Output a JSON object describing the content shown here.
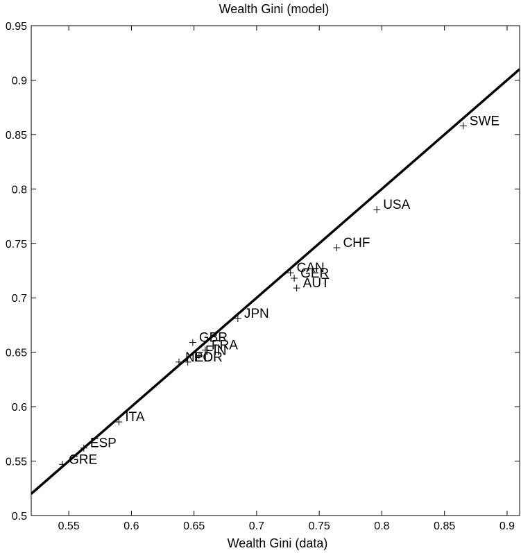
{
  "chart_data": {
    "type": "scatter",
    "title": "Wealth Gini (model)",
    "xlabel": "Wealth Gini (data)",
    "ylabel": "",
    "xlim": [
      0.52,
      0.91
    ],
    "ylim": [
      0.5,
      0.95
    ],
    "xticks": [
      "0.55",
      "0.6",
      "0.65",
      "0.7",
      "0.75",
      "0.8",
      "0.85",
      "0.9"
    ],
    "yticks": [
      "0.5",
      "0.55",
      "0.6",
      "0.65",
      "0.7",
      "0.75",
      "0.8",
      "0.85",
      "0.9",
      "0.95"
    ],
    "grid": false,
    "marker": "plus",
    "points": [
      {
        "label": "SWE",
        "x": 0.865,
        "y": 0.858
      },
      {
        "label": "USA",
        "x": 0.796,
        "y": 0.781
      },
      {
        "label": "CHF",
        "x": 0.764,
        "y": 0.746
      },
      {
        "label": "CAN",
        "x": 0.727,
        "y": 0.723
      },
      {
        "label": "GER",
        "x": 0.73,
        "y": 0.718
      },
      {
        "label": "AUT",
        "x": 0.732,
        "y": 0.709
      },
      {
        "label": "JPN",
        "x": 0.685,
        "y": 0.681
      },
      {
        "label": "GBR",
        "x": 0.649,
        "y": 0.659
      },
      {
        "label": "FRA",
        "x": 0.659,
        "y": 0.652
      },
      {
        "label": "FIN",
        "x": 0.654,
        "y": 0.647
      },
      {
        "label": "NED",
        "x": 0.638,
        "y": 0.641
      },
      {
        "label": "POR",
        "x": 0.645,
        "y": 0.641
      },
      {
        "label": "ITA",
        "x": 0.59,
        "y": 0.586
      },
      {
        "label": "ESP",
        "x": 0.562,
        "y": 0.562
      },
      {
        "label": "GRE",
        "x": 0.545,
        "y": 0.547
      }
    ],
    "fit_line": {
      "intercept": 0.0,
      "slope": 1.0
    }
  }
}
